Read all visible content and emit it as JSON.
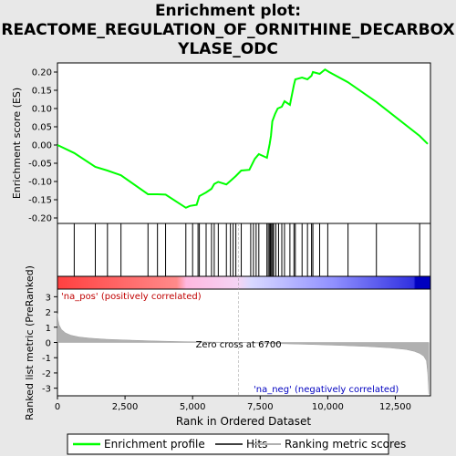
{
  "title_lines": [
    "Enrichment plot:",
    "REACTOME_REGULATION_OF_ORNITHINE_DECARBOX",
    "YLASE_ODC"
  ],
  "chart_data": [
    {
      "type": "line",
      "name": "enrichment-profile",
      "ylabel": "Enrichment score (ES)",
      "xlim": [
        0,
        13800
      ],
      "ylim": [
        -0.215,
        0.225
      ],
      "yticks": [
        0.2,
        0.15,
        0.1,
        0.05,
        0.0,
        -0.05,
        -0.1,
        -0.15,
        -0.2
      ],
      "ytick_labels": [
        "0.20",
        "0.15",
        "0.10",
        "0.05",
        "0.00",
        "-0.05",
        "-0.10",
        "-0.15",
        "-0.20"
      ],
      "color": "#00ff00",
      "x": [
        0,
        620,
        1400,
        1850,
        2350,
        3350,
        3700,
        4000,
        4750,
        4900,
        5150,
        5250,
        5500,
        5700,
        5800,
        5950,
        6250,
        6450,
        6600,
        6800,
        7100,
        7300,
        7450,
        7750,
        7850,
        7900,
        7950,
        8050,
        8150,
        8300,
        8400,
        8600,
        8750,
        8800,
        9050,
        9250,
        9400,
        9450,
        9700,
        9900,
        10050,
        10750,
        11800,
        13400,
        13700
      ],
      "y": [
        0.0,
        -0.022,
        -0.06,
        -0.07,
        -0.083,
        -0.135,
        -0.135,
        -0.136,
        -0.172,
        -0.167,
        -0.164,
        -0.14,
        -0.13,
        -0.12,
        -0.107,
        -0.101,
        -0.108,
        -0.095,
        -0.085,
        -0.07,
        -0.068,
        -0.038,
        -0.025,
        -0.035,
        0.003,
        0.025,
        0.065,
        0.085,
        0.1,
        0.105,
        0.12,
        0.11,
        0.165,
        0.18,
        0.185,
        0.18,
        0.19,
        0.2,
        0.195,
        0.207,
        0.2,
        0.172,
        0.118,
        0.025,
        0.003
      ],
      "hits": [
        620,
        1400,
        1850,
        2350,
        3350,
        3700,
        4000,
        4750,
        5000,
        5200,
        5250,
        5500,
        5700,
        5800,
        5950,
        6250,
        6400,
        6500,
        6600,
        6800,
        7150,
        7250,
        7350,
        7450,
        7750,
        7800,
        7850,
        7880,
        7920,
        7960,
        8000,
        8080,
        8180,
        8300,
        8400,
        8600,
        8750,
        8800,
        9050,
        9250,
        9400,
        9450,
        9700,
        10000,
        10750,
        11800,
        13400
      ]
    },
    {
      "type": "area",
      "name": "ranked-list-metric",
      "ylabel": "Ranked list metric (PreRanked)",
      "xlabel": "Rank in Ordered Dataset",
      "xlim": [
        0,
        13800
      ],
      "ylim": [
        -3.5,
        3.5
      ],
      "xticks": [
        0,
        2500,
        5000,
        7500,
        10000,
        12500
      ],
      "xtick_labels": [
        "0",
        "2,500",
        "5,000",
        "7,500",
        "10,000",
        "12,500"
      ],
      "yticks": [
        3,
        2,
        1,
        0,
        -1,
        -2,
        -3
      ],
      "ytick_labels": [
        "3",
        "2",
        "1",
        "0",
        "-1",
        "-2",
        "-3"
      ],
      "color": "#b0b0b0",
      "x": [
        0,
        20,
        60,
        150,
        300,
        500,
        800,
        1200,
        1800,
        2500,
        3500,
        4500,
        5500,
        6700,
        7500,
        8500,
        9500,
        10500,
        11500,
        12300,
        12900,
        13200,
        13400,
        13550,
        13650,
        13700,
        13740
      ],
      "y": [
        1.9,
        1.5,
        1.15,
        0.85,
        0.62,
        0.47,
        0.36,
        0.28,
        0.21,
        0.16,
        0.1,
        0.06,
        0.03,
        0.0,
        -0.04,
        -0.09,
        -0.14,
        -0.2,
        -0.27,
        -0.35,
        -0.46,
        -0.58,
        -0.72,
        -0.9,
        -1.2,
        -2.0,
        -3.4
      ],
      "zero_cross_label": "Zero cross at 6700",
      "zero_cross": 6700,
      "pos_label": "'na_pos' (positively correlated)",
      "neg_label": "'na_neg' (negatively correlated)"
    }
  ],
  "legend": {
    "items": [
      {
        "label": "Enrichment profile",
        "color": "#00ff00"
      },
      {
        "label": "Hits",
        "color": "#000000"
      },
      {
        "label": "Ranking metric scores",
        "color": "#b0b0b0"
      }
    ]
  }
}
